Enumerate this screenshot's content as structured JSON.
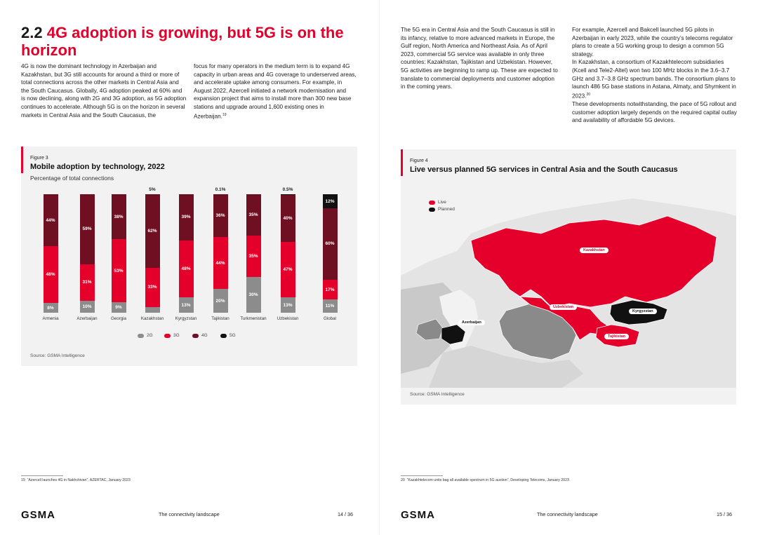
{
  "left_page": {
    "heading_prefix": "2.2",
    "heading_highlight": "4G adoption is growing, but 5G is on the horizon",
    "col1": "4G is now the dominant technology in Azerbaijan and Kazakhstan, but 3G still accounts for around a third or more of total connections across the other markets in Central Asia and the South Caucasus. Globally, 4G adoption peaked at 60% and is now declining, along with 2G and 3G adoption, as 5G adoption continues to accelerate. Although 5G is on the horizon in several markets in Central Asia and the South Caucasus, the",
    "col2": "focus for many operators in the medium term is to expand 4G capacity in urban areas and 4G coverage to underserved areas, and accelerate uptake among consumers. For example, in August 2022, Azercell initiated a network modernisation and expansion project that aims to install more than 300 new base stations and upgrade around 1,600 existing ones in Azerbaijan.",
    "col2_sup": "19",
    "figure_num": "Figure 3",
    "figure_title": "Mobile adoption by technology, 2022",
    "figure_subtitle": "Percentage of total connections",
    "source": "Source: GSMA Intelligence",
    "footnote_num": "19",
    "footnote_text": "“Azercell launches 4G in Nakhchivan”, AZERTAC, January 2023",
    "footer_title": "The connectivity landscape",
    "page_number": "14 / 36"
  },
  "right_page": {
    "col1": "The 5G era in Central Asia and the South Caucasus is still in its infancy, relative to more advanced markets in Europe, the Gulf region, North America and Northeast Asia. As of April 2023, commercial 5G service was available in only three countries: Kazakhstan, Tajikistan and Uzbekistan. However, 5G activities are beginning to ramp up. These are expected to translate to commercial deployments and customer adoption in the coming years.",
    "col2a": "For example, Azercell and Bakcell launched 5G pilots in Azerbaijan in early 2023, while the country’s telecoms regulator plans to create a 5G working group to design a common 5G strategy.",
    "col2b": "In Kazakhstan, a consortium of Kazakhtelecom subsidiaries (Kcell and Tele2-Altel) won two 100 MHz blocks in the 3.6–3.7 GHz and 3.7–3.8 GHz spectrum bands. The consortium plans to launch 486 5G base stations in Astana, Almaty, and Shymkent in 2023.",
    "col2b_sup": "20",
    "col2c": "These developments notwithstanding, the pace of 5G rollout and customer adoption largely depends on the required capital outlay and availability of affordable 5G devices.",
    "figure_num": "Figure 4",
    "figure_title": "Live versus planned 5G services in Central Asia and the South Caucasus",
    "legend_live": "Live",
    "legend_planned": "Planned",
    "map_labels": {
      "kazakhstan": "Kazakhstan",
      "uzbekistan": "Uzbekistan",
      "kyrgyzstan": "Kyrgyzstan",
      "tajikistan": "Tajikistan",
      "azerbaijan": "Azerbaijan"
    },
    "source": "Source: GSMA Intelligence",
    "footnote_num": "20",
    "footnote_text": "“Kazakhtelecom units bag all available spectrum in 5G auction”, Developing Telecoms, January 2023",
    "footer_title": "The connectivity landscape",
    "page_number": "15 / 36"
  },
  "brand": "GSMA",
  "colors": {
    "accent_red": "#e4002b",
    "dark_red": "#6e0f22",
    "grey_2g": "#8c8c8c",
    "black_5g": "#111111",
    "panel_bg": "#f2f2f2",
    "map_grey": "#8a8a8a",
    "map_light": "#d0d0d0"
  },
  "chart_data": {
    "type": "bar",
    "stacked": true,
    "title": "Mobile adoption by technology, 2022",
    "subtitle": "Percentage of total connections",
    "ylim": [
      0,
      100
    ],
    "categories": [
      "Armenia",
      "Azerbaijan",
      "Georgia",
      "Kazakhstan",
      "Kyrgyzstan",
      "Tajikistan",
      "Turkmenistan",
      "Uzbekistan",
      "Global"
    ],
    "series": [
      {
        "name": "2G",
        "color": "#8c8c8c",
        "values": [
          8,
          10,
          9,
          5,
          13,
          20,
          30,
          13,
          11
        ],
        "labels": [
          "8%",
          "10%",
          "9%",
          "5%",
          "13%",
          "20%",
          "30%",
          "13%",
          "11%"
        ]
      },
      {
        "name": "3G",
        "color": "#e4002b",
        "values": [
          48,
          31,
          53,
          33,
          48,
          44,
          35,
          47,
          17
        ],
        "labels": [
          "48%",
          "31%",
          "53%",
          "33%",
          "48%",
          "44%",
          "35%",
          "47%",
          "17%"
        ]
      },
      {
        "name": "4G",
        "color": "#6e0f22",
        "values": [
          44,
          59,
          38,
          62,
          39,
          36,
          35,
          40,
          60
        ],
        "labels": [
          "44%",
          "59%",
          "38%",
          "62%",
          "39%",
          "36%",
          "35%",
          "40%",
          "60%"
        ]
      },
      {
        "name": "5G",
        "color": "#111111",
        "values": [
          0,
          0,
          0,
          0,
          0,
          0.1,
          0,
          0.5,
          12
        ],
        "labels": [
          "",
          "",
          "",
          "",
          "",
          "0.1%",
          "",
          "0.5%",
          "12%"
        ]
      }
    ],
    "legend": [
      "2G",
      "3G",
      "4G",
      "5G"
    ],
    "legend_position": "bottom"
  }
}
